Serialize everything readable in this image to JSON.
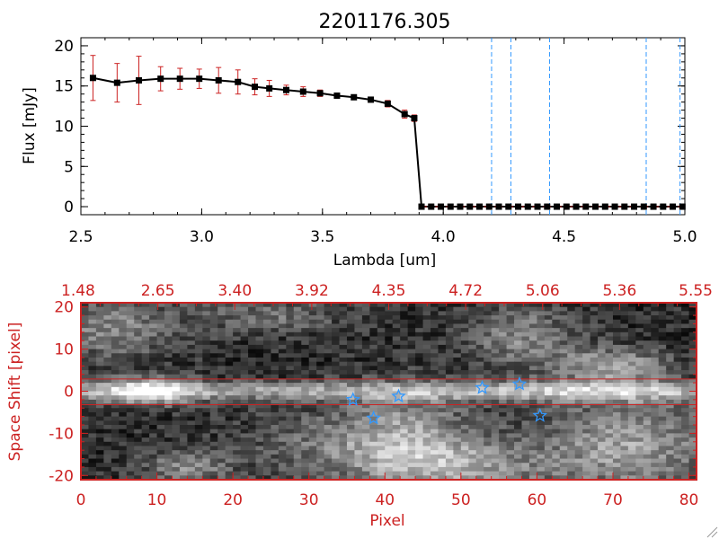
{
  "chart_data": [
    {
      "type": "line",
      "title": "2201176.305",
      "xlabel": "Lambda [um]",
      "ylabel": "Flux [mJy]",
      "xlim": [
        2.5,
        5.0
      ],
      "ylim": [
        -1,
        21
      ],
      "x_ticks": [
        "2.5",
        "3.0",
        "3.5",
        "4.0",
        "4.5",
        "5.0"
      ],
      "y_ticks": [
        "0",
        "5",
        "10",
        "15",
        "20"
      ],
      "series": [
        {
          "name": "flux",
          "x": [
            2.55,
            2.65,
            2.74,
            2.83,
            2.91,
            2.99,
            3.07,
            3.15,
            3.22,
            3.28,
            3.35,
            3.42,
            3.49,
            3.56,
            3.63,
            3.7,
            3.77,
            3.84,
            3.88,
            3.91,
            3.95,
            3.99,
            4.03,
            4.07,
            4.11,
            4.15,
            4.19,
            4.23,
            4.27,
            4.31,
            4.35,
            4.39,
            4.43,
            4.47,
            4.51,
            4.55,
            4.59,
            4.63,
            4.67,
            4.71,
            4.75,
            4.79,
            4.83,
            4.87,
            4.91,
            4.95,
            4.99
          ],
          "y": [
            16.0,
            15.4,
            15.7,
            15.9,
            15.9,
            15.9,
            15.7,
            15.5,
            14.9,
            14.7,
            14.5,
            14.3,
            14.1,
            13.8,
            13.6,
            13.3,
            12.8,
            11.5,
            11.0,
            0,
            0,
            0,
            0,
            0,
            0,
            0,
            0,
            0,
            0,
            0,
            0,
            0,
            0,
            0,
            0,
            0,
            0,
            0,
            0,
            0,
            0,
            0,
            0,
            0,
            0,
            0,
            0
          ],
          "error": [
            2.8,
            2.4,
            3.0,
            1.5,
            1.3,
            1.2,
            1.6,
            1.5,
            1.0,
            1.0,
            0.6,
            0.6,
            0.4,
            0.3,
            0.3,
            0.3,
            0.4,
            0.5,
            0.4,
            0,
            0,
            0,
            0,
            0,
            0,
            0,
            0,
            0,
            0,
            0,
            0,
            0,
            0,
            0,
            0,
            0,
            0,
            0,
            0,
            0,
            0,
            0,
            0,
            0,
            0,
            0,
            0
          ]
        }
      ],
      "vlines": [
        4.2,
        4.28,
        4.44,
        4.84,
        4.98
      ],
      "colors": {
        "line": "#000000",
        "marker": "#000000",
        "error": "#cc2222",
        "vline": "#3399ff"
      }
    },
    {
      "type": "heatmap",
      "xlabel": "Pixel",
      "ylabel": "Space Shift [pixel]",
      "xlim": [
        0,
        81
      ],
      "ylim": [
        -21,
        21
      ],
      "x_ticks": [
        "0",
        "10",
        "20",
        "30",
        "40",
        "50",
        "60",
        "70",
        "80"
      ],
      "y_ticks": [
        "-20",
        "-10",
        "0",
        "10",
        "20"
      ],
      "top_ticks": [
        "1.48",
        "2.65",
        "3.40",
        "3.92",
        "4.35",
        "4.72",
        "5.06",
        "5.36",
        "5.55"
      ],
      "band_lines": [
        2.9,
        -3.2
      ],
      "stars": [
        {
          "x": 35.8,
          "y": -2.0
        },
        {
          "x": 38.5,
          "y": -6.4
        },
        {
          "x": 41.8,
          "y": -1.2
        },
        {
          "x": 52.8,
          "y": 0.8
        },
        {
          "x": 57.7,
          "y": 1.7
        },
        {
          "x": 60.4,
          "y": -5.8
        }
      ],
      "colors": {
        "frame": "#cc2222",
        "star": "#3399ff"
      }
    }
  ]
}
